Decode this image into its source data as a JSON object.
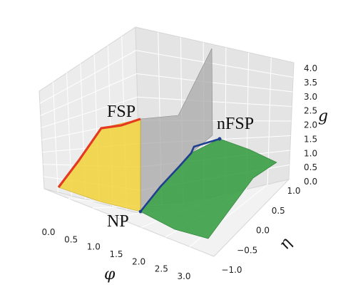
{
  "chart_data": {
    "type": "3d-surface",
    "title": "",
    "xlabel": "φ",
    "ylabel": "η",
    "zlabel": "g",
    "x_ticks": [
      "0.0",
      "0.5",
      "1.0",
      "1.5",
      "2.0",
      "2.5",
      "3.0"
    ],
    "y_ticks": [
      "−1.0",
      "−0.5",
      "0.0",
      "0.5",
      "1.0"
    ],
    "z_ticks": [
      "0.0",
      "0.5",
      "1.0",
      "1.5",
      "2.0",
      "2.5",
      "3.0",
      "3.5",
      "4.0"
    ],
    "xlim": [
      0,
      3.14
    ],
    "ylim": [
      -1,
      1
    ],
    "zlim": [
      0,
      4
    ],
    "grid": true,
    "annotations": [
      {
        "id": "fsp",
        "text": "FSP"
      },
      {
        "id": "nfsp",
        "text": "nFSP"
      },
      {
        "id": "np",
        "text": "NP"
      }
    ],
    "surfaces": [
      {
        "region": "FSP",
        "color": "#f2d23a"
      },
      {
        "region": "NP",
        "color": "#2f9a3c"
      },
      {
        "region": "wall",
        "color": "#a9a9a9"
      }
    ],
    "boundary_lines": [
      {
        "region": "FSP edge",
        "color": "#e53a22"
      },
      {
        "region": "NP/nFSP edge",
        "color": "#1f3f8f"
      }
    ]
  }
}
